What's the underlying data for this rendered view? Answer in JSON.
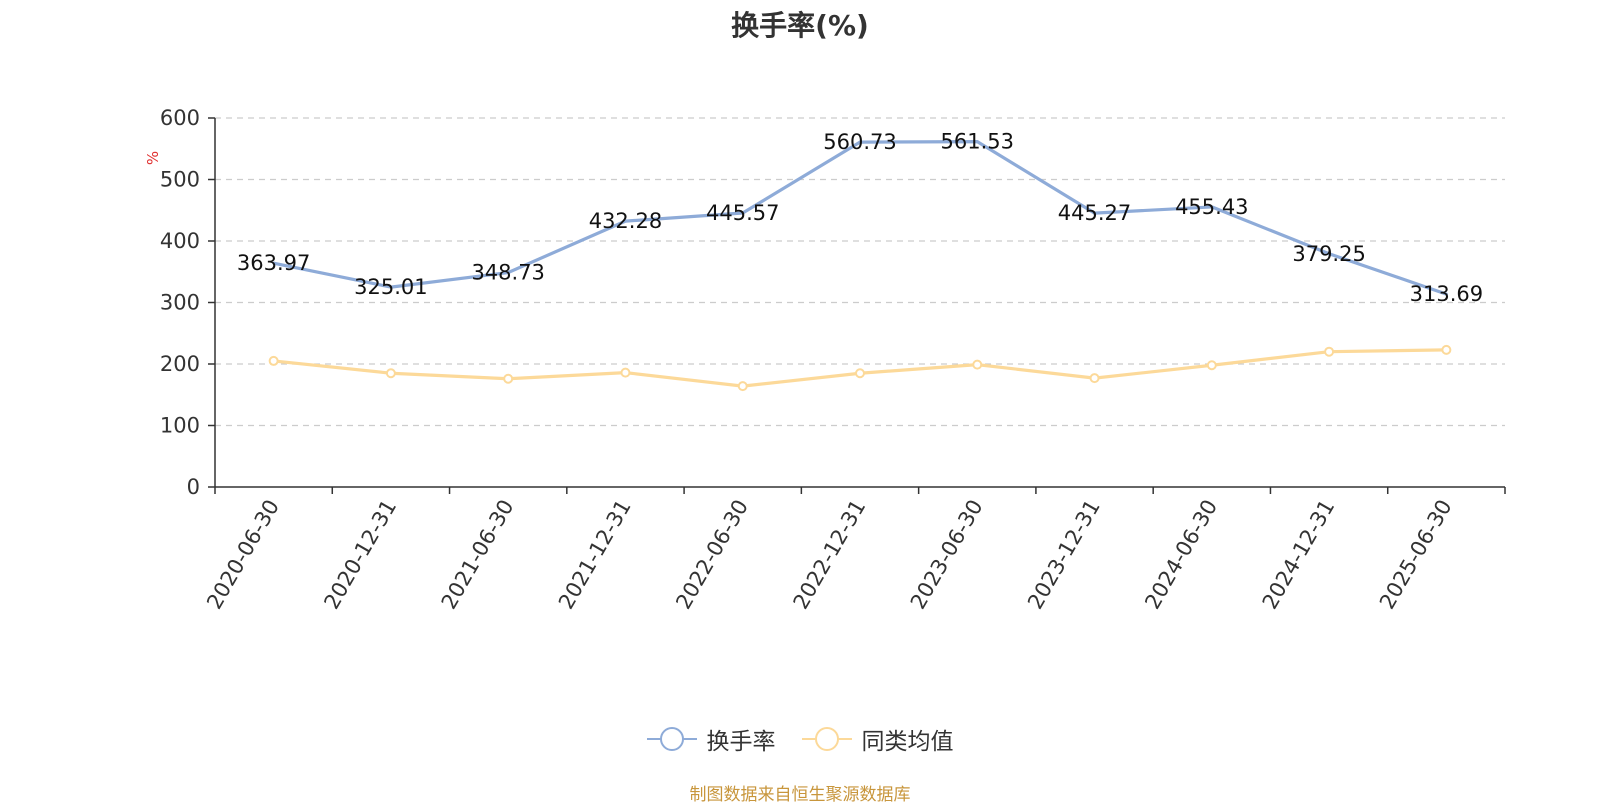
{
  "chart_data": {
    "type": "line",
    "title": "换手率(%)",
    "ylabel": "%",
    "xlabel": "",
    "ylim": [
      0,
      600
    ],
    "yticks": [
      0,
      100,
      200,
      300,
      400,
      500,
      600
    ],
    "grid": true,
    "legend_position": "bottom",
    "categories": [
      "2020-06-30",
      "2020-12-31",
      "2021-06-30",
      "2021-12-31",
      "2022-06-30",
      "2022-12-31",
      "2023-06-30",
      "2023-12-31",
      "2024-06-30",
      "2024-12-31",
      "2025-06-30"
    ],
    "series": [
      {
        "name": "换手率",
        "color": "#8eabd8",
        "values": [
          363.97,
          325.01,
          348.73,
          432.28,
          445.57,
          560.73,
          561.53,
          445.27,
          455.43,
          379.25,
          313.69
        ],
        "labels": [
          "363.97",
          "325.01",
          "348.73",
          "432.28",
          "445.57",
          "560.73",
          "561.53",
          "445.27",
          "455.43",
          "379.25",
          "313.69"
        ],
        "show_labels": true
      },
      {
        "name": "同类均值",
        "color": "#fcd999",
        "values": [
          205,
          185,
          176,
          186,
          164,
          185,
          199,
          177,
          198,
          220,
          223
        ],
        "show_labels": false
      }
    ]
  },
  "footer": {
    "source": "制图数据来自恒生聚源数据库"
  }
}
